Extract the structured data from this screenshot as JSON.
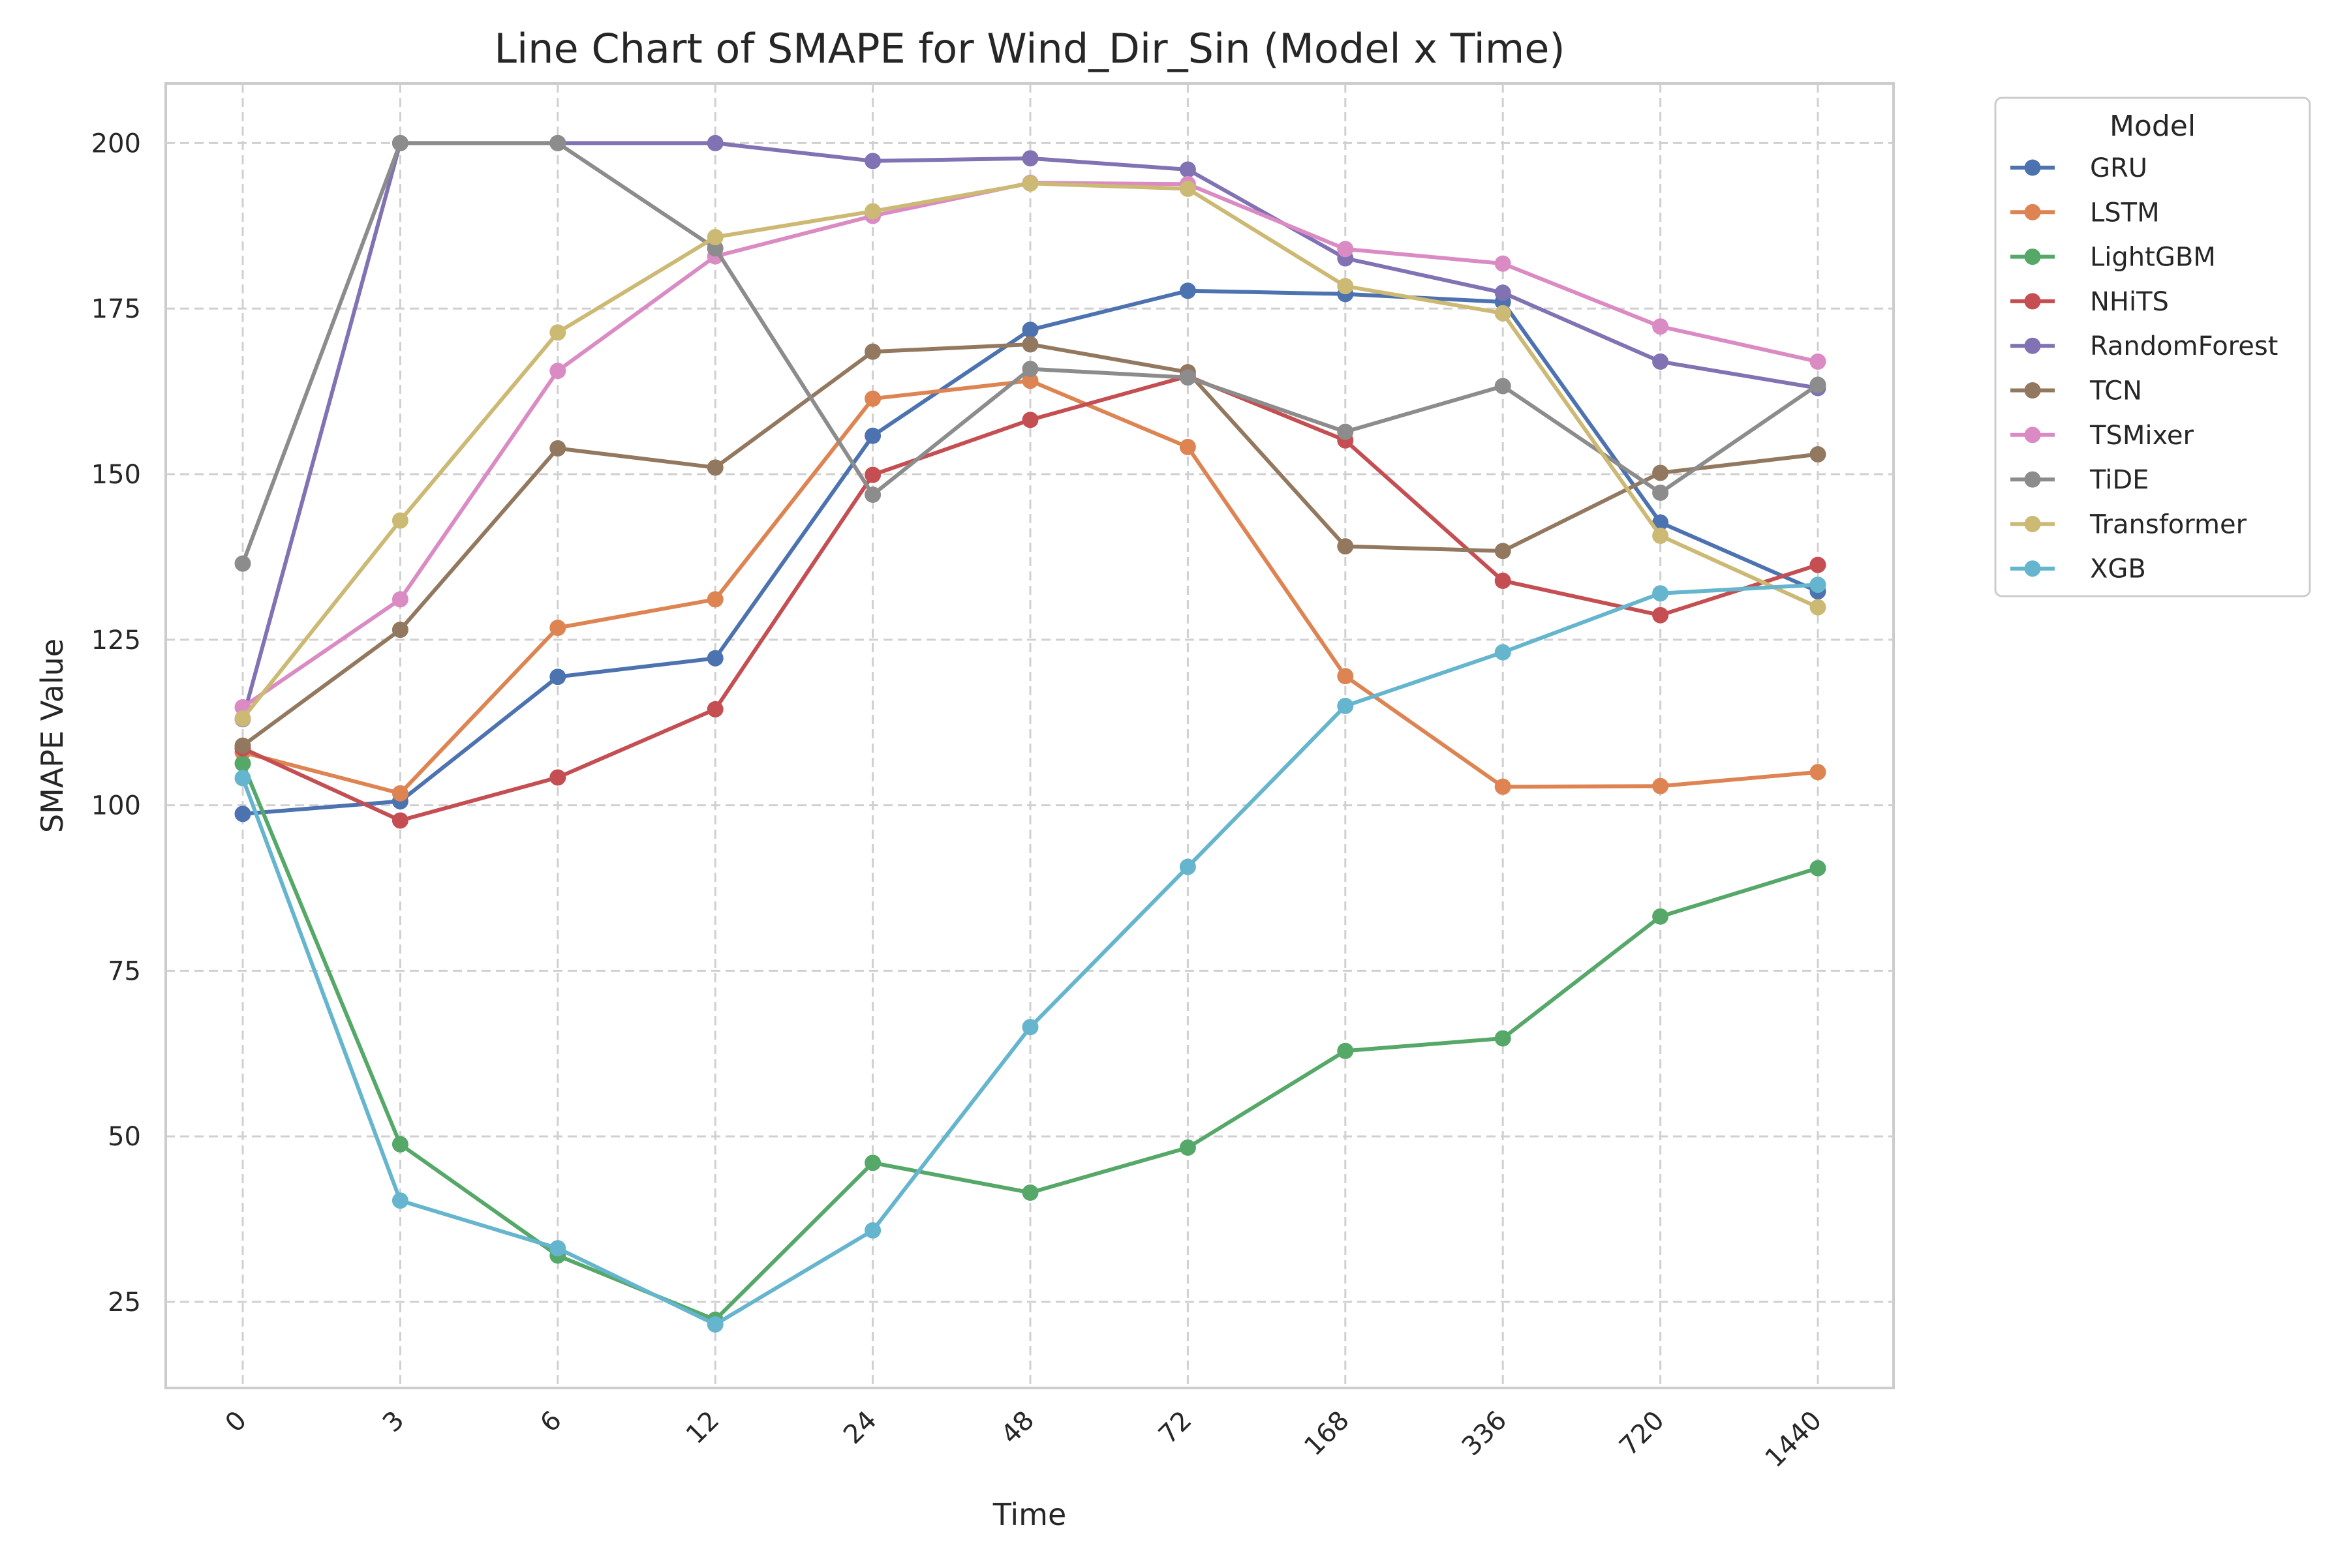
{
  "chart_data": {
    "type": "line",
    "title": "Line Chart of SMAPE for Wind_Dir_Sin (Model x Time)",
    "xlabel": "Time",
    "ylabel": "SMAPE Value",
    "categories": [
      "0",
      "3",
      "6",
      "12",
      "24",
      "48",
      "72",
      "168",
      "336",
      "720",
      "1440"
    ],
    "yticks": [
      "25",
      "50",
      "75",
      "100",
      "125",
      "150",
      "175",
      "200"
    ],
    "ylim": [
      12,
      209
    ],
    "grid": true,
    "legend": {
      "title": "Model",
      "placement": "outside-top-right"
    },
    "series": [
      {
        "name": "GRU",
        "color": "#4c72b0",
        "values": [
          98.7,
          100.6,
          119.4,
          122.2,
          155.8,
          171.8,
          177.7,
          177.2,
          176.0,
          142.7,
          132.3
        ]
      },
      {
        "name": "LSTM",
        "color": "#dd8452",
        "values": [
          108.0,
          101.8,
          126.8,
          131.1,
          161.4,
          164.1,
          154.1,
          119.5,
          102.8,
          102.9,
          105.0
        ]
      },
      {
        "name": "LightGBM",
        "color": "#55a868",
        "values": [
          106.3,
          48.8,
          32.0,
          22.3,
          46.0,
          41.5,
          48.3,
          62.9,
          64.8,
          83.2,
          90.5
        ]
      },
      {
        "name": "NHiTS",
        "color": "#c44e52",
        "values": [
          108.6,
          97.7,
          104.2,
          114.5,
          149.9,
          158.2,
          164.8,
          155.1,
          133.9,
          128.7,
          136.3
        ]
      },
      {
        "name": "RandomForest",
        "color": "#8172b3",
        "values": [
          113.0,
          200.0,
          200.0,
          200.0,
          197.3,
          197.7,
          196.0,
          182.6,
          177.4,
          167.0,
          163.0
        ]
      },
      {
        "name": "TCN",
        "color": "#937860",
        "values": [
          109.0,
          126.5,
          153.9,
          151.0,
          168.5,
          169.6,
          165.4,
          139.1,
          138.4,
          150.2,
          153.0
        ]
      },
      {
        "name": "TSMixer",
        "color": "#da8bc3",
        "values": [
          114.8,
          131.1,
          165.6,
          182.9,
          189.0,
          194.0,
          193.8,
          184.0,
          181.8,
          172.3,
          167.0
        ]
      },
      {
        "name": "TiDE",
        "color": "#8c8c8c",
        "values": [
          136.5,
          200.0,
          200.0,
          184.1,
          146.9,
          165.9,
          164.6,
          156.4,
          163.3,
          147.2,
          163.5
        ]
      },
      {
        "name": "Transformer",
        "color": "#ccb974",
        "values": [
          113.1,
          143.0,
          171.4,
          185.8,
          189.7,
          193.9,
          193.1,
          178.4,
          174.3,
          140.7,
          129.9
        ]
      },
      {
        "name": "XGB",
        "color": "#64b5cd",
        "values": [
          104.1,
          40.3,
          33.1,
          21.6,
          35.8,
          66.5,
          90.7,
          115.0,
          123.1,
          132.0,
          133.3
        ]
      }
    ]
  }
}
